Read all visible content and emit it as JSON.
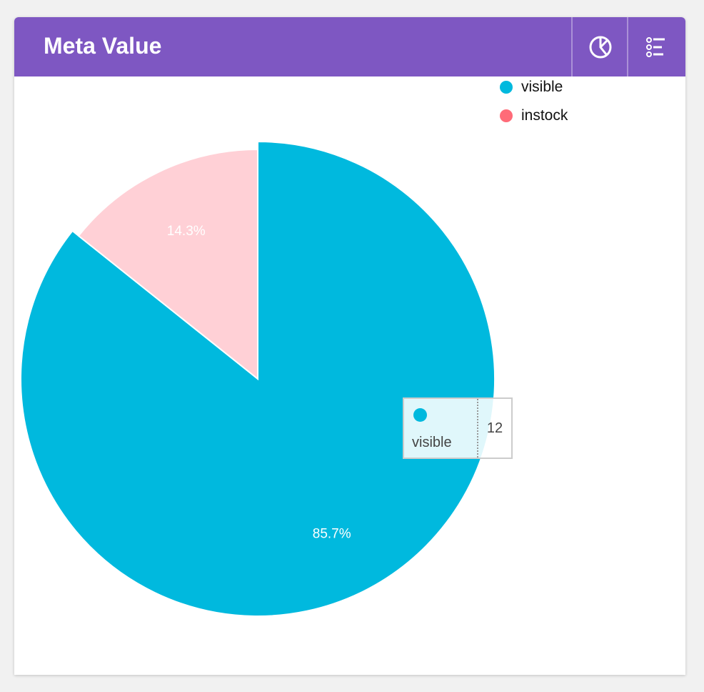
{
  "header": {
    "title": "Meta Value",
    "icons": [
      "pie-chart-icon",
      "legend-list-icon"
    ]
  },
  "colors": {
    "header": "#7e57c2",
    "visible": "#00b9de",
    "instock": "#ff6b78",
    "instock_faded": "#ffd0d6"
  },
  "chart_data": {
    "type": "pie",
    "categories": [
      "visible",
      "instock"
    ],
    "values": [
      12,
      2
    ],
    "labels": [
      "85.7%",
      "14.3%"
    ],
    "legend": "top-right",
    "highlighted": "visible"
  },
  "tooltip": {
    "name": "visible",
    "value": "12"
  }
}
